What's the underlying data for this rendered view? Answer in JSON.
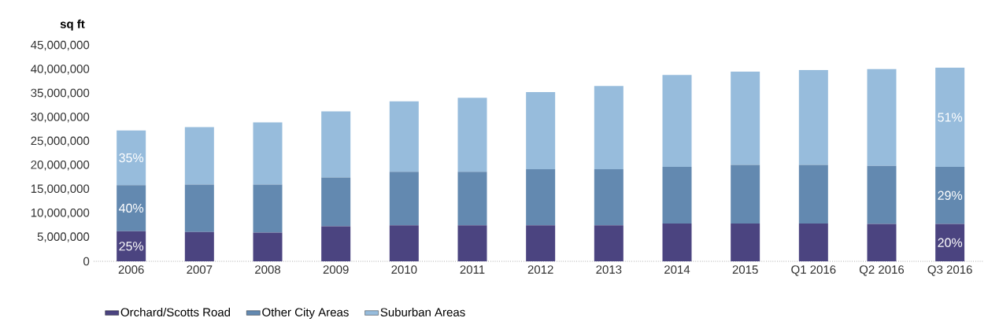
{
  "chart_data": {
    "type": "bar",
    "stacked": true,
    "ylabel": "sq ft",
    "categories": [
      "2006",
      "2007",
      "2008",
      "2009",
      "2010",
      "2011",
      "2012",
      "2013",
      "2014",
      "2015",
      "Q1 2016",
      "Q2 2016",
      "Q3 2016"
    ],
    "series": [
      {
        "name": "Orchard/Scotts Road",
        "color": "#4b4480",
        "values": [
          6300000,
          6100000,
          6000000,
          7300000,
          7500000,
          7500000,
          7500000,
          7500000,
          7900000,
          7900000,
          7900000,
          7800000,
          7800000
        ]
      },
      {
        "name": "Other City Areas",
        "color": "#6389b0",
        "values": [
          9600000,
          9900000,
          10000000,
          10200000,
          11200000,
          11200000,
          11700000,
          11700000,
          11800000,
          12200000,
          12200000,
          12100000,
          11900000
        ]
      },
      {
        "name": "Suburban Areas",
        "color": "#97bcdc",
        "values": [
          11400000,
          12000000,
          13000000,
          13800000,
          14700000,
          15400000,
          16100000,
          17400000,
          19200000,
          19500000,
          19800000,
          20200000,
          20700000
        ]
      }
    ],
    "annotations": [
      "25%",
      "40%",
      "35%",
      "20%",
      "29%",
      "51%"
    ],
    "ylim": [
      0,
      45000000
    ],
    "yticks": [
      0,
      {
        "value": 5000000,
        "label": "5,000,000"
      },
      {
        "value": 10000000,
        "label": "10,000,000"
      },
      {
        "value": 15000000,
        "label": "15,000,000"
      },
      {
        "value": 20000000,
        "label": "20,000,000"
      },
      {
        "value": 25000000,
        "label": "25,000,000"
      },
      {
        "value": 30000000,
        "label": "30,000,000"
      },
      {
        "value": 35000000,
        "label": "35,000,000"
      },
      {
        "value": 40000000,
        "label": "40,000,000"
      },
      {
        "value": 45000000,
        "label": "45,000,000"
      }
    ],
    "legend": "bottom left"
  }
}
